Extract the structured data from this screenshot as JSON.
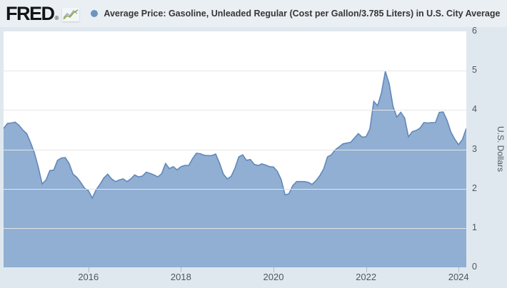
{
  "header": {
    "logo_text": "FRED",
    "logo_registered": "®",
    "legend": {
      "series_label": "Average Price: Gasoline, Unleaded Regular (Cost per Gallon/3.785 Liters) in U.S. City Average"
    }
  },
  "colors": {
    "page_background": "#e0e8ef",
    "header_background": "#eaeff4",
    "plot_background": "#ffffff",
    "gridline": "#e6e6e6",
    "area_fill": "#91afd3",
    "line_stroke": "#6288b8",
    "legend_dot": "#6d93c1",
    "axis_text": "#4f565c"
  },
  "chart_data": {
    "type": "area",
    "title": "Average Price: Gasoline, Unleaded Regular (Cost per Gallon/3.785 Liters) in U.S. City Average",
    "ylabel": "U.S. Dollars",
    "xlabel": "",
    "ylim": [
      0,
      6
    ],
    "y_ticks": [
      0,
      1,
      2,
      3,
      4,
      5,
      6
    ],
    "x_ticks": [
      2016,
      2018,
      2020,
      2022,
      2024
    ],
    "frequency": "monthly",
    "start": "2014-03",
    "end": "2024-03",
    "grid": "horizontal",
    "legend_position": "top",
    "values": [
      3.53,
      3.66,
      3.67,
      3.69,
      3.61,
      3.49,
      3.4,
      3.17,
      2.91,
      2.55,
      2.12,
      2.22,
      2.46,
      2.47,
      2.72,
      2.78,
      2.79,
      2.64,
      2.37,
      2.29,
      2.16,
      2.01,
      1.95,
      1.76,
      1.97,
      2.11,
      2.27,
      2.37,
      2.25,
      2.18,
      2.22,
      2.25,
      2.18,
      2.25,
      2.35,
      2.3,
      2.32,
      2.42,
      2.39,
      2.35,
      2.3,
      2.38,
      2.64,
      2.51,
      2.56,
      2.48,
      2.56,
      2.59,
      2.59,
      2.76,
      2.9,
      2.89,
      2.85,
      2.84,
      2.84,
      2.88,
      2.65,
      2.37,
      2.25,
      2.31,
      2.52,
      2.81,
      2.86,
      2.72,
      2.74,
      2.62,
      2.59,
      2.63,
      2.6,
      2.56,
      2.55,
      2.44,
      2.23,
      1.84,
      1.87,
      2.08,
      2.18,
      2.18,
      2.18,
      2.16,
      2.11,
      2.2,
      2.33,
      2.5,
      2.81,
      2.86,
      2.99,
      3.06,
      3.14,
      3.16,
      3.18,
      3.29,
      3.4,
      3.31,
      3.32,
      3.52,
      4.22,
      4.11,
      4.44,
      4.98,
      4.67,
      4.09,
      3.82,
      3.94,
      3.8,
      3.32,
      3.45,
      3.48,
      3.54,
      3.68,
      3.67,
      3.68,
      3.68,
      3.94,
      3.95,
      3.74,
      3.44,
      3.26,
      3.12,
      3.25,
      3.53
    ]
  }
}
